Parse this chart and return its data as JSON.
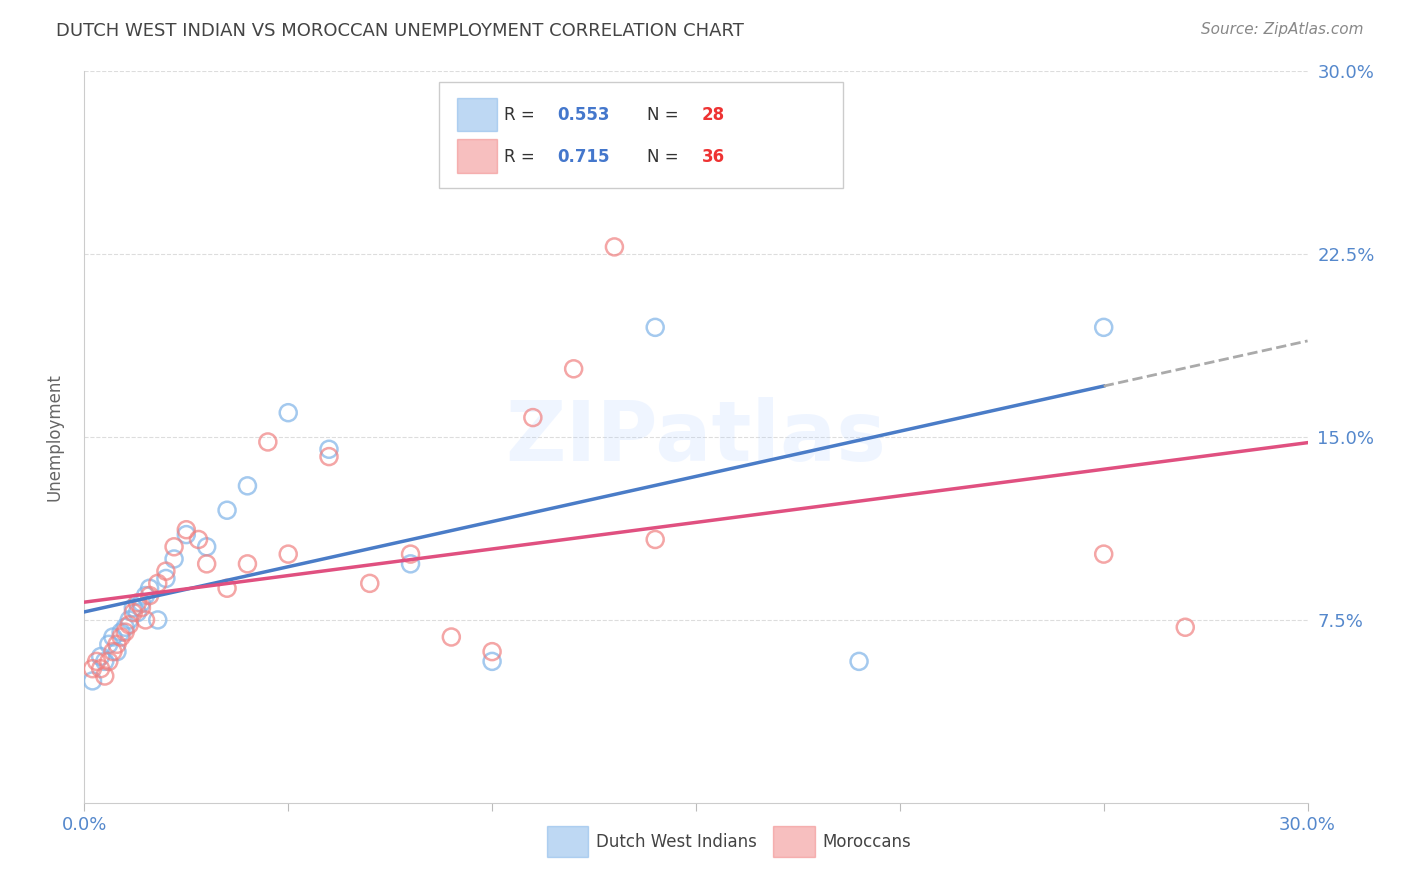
{
  "title": "DUTCH WEST INDIAN VS MOROCCAN UNEMPLOYMENT CORRELATION CHART",
  "source": "Source: ZipAtlas.com",
  "ylabel": "Unemployment",
  "xlim": [
    0.0,
    0.3
  ],
  "ylim": [
    0.0,
    0.3
  ],
  "xticks": [
    0.0,
    0.05,
    0.1,
    0.15,
    0.2,
    0.25,
    0.3
  ],
  "ytick_labels": [
    "7.5%",
    "15.0%",
    "22.5%",
    "30.0%"
  ],
  "ytick_positions": [
    0.075,
    0.15,
    0.225,
    0.3
  ],
  "watermark": "ZIPatlas",
  "blue_color": "#7EB3E8",
  "pink_color": "#F08080",
  "blue_scatter_face": "none",
  "pink_scatter_face": "none",
  "blue_line_color": "#4A7CC7",
  "pink_line_color": "#E05080",
  "dashed_line_color": "#AAAAAA",
  "title_color": "#444444",
  "axis_label_color": "#666666",
  "tick_color": "#5588CC",
  "grid_color": "#DDDDDD",
  "background_color": "#FFFFFF",
  "dutch_west_indians_x": [
    0.002,
    0.004,
    0.005,
    0.006,
    0.007,
    0.008,
    0.009,
    0.01,
    0.011,
    0.012,
    0.013,
    0.014,
    0.015,
    0.016,
    0.018,
    0.02,
    0.022,
    0.025,
    0.03,
    0.035,
    0.04,
    0.05,
    0.06,
    0.08,
    0.1,
    0.14,
    0.19,
    0.25
  ],
  "dutch_west_indians_y": [
    0.05,
    0.06,
    0.058,
    0.065,
    0.068,
    0.062,
    0.07,
    0.072,
    0.075,
    0.08,
    0.078,
    0.082,
    0.085,
    0.088,
    0.075,
    0.092,
    0.1,
    0.11,
    0.105,
    0.12,
    0.13,
    0.16,
    0.145,
    0.098,
    0.058,
    0.195,
    0.058,
    0.195
  ],
  "moroccans_x": [
    0.002,
    0.003,
    0.004,
    0.005,
    0.006,
    0.007,
    0.008,
    0.009,
    0.01,
    0.011,
    0.012,
    0.013,
    0.014,
    0.015,
    0.016,
    0.018,
    0.02,
    0.022,
    0.025,
    0.028,
    0.03,
    0.035,
    0.04,
    0.045,
    0.05,
    0.06,
    0.07,
    0.08,
    0.09,
    0.1,
    0.11,
    0.12,
    0.13,
    0.14,
    0.25,
    0.27
  ],
  "moroccans_y": [
    0.055,
    0.058,
    0.055,
    0.052,
    0.058,
    0.062,
    0.065,
    0.068,
    0.07,
    0.073,
    0.078,
    0.082,
    0.08,
    0.075,
    0.085,
    0.09,
    0.095,
    0.105,
    0.112,
    0.108,
    0.098,
    0.088,
    0.098,
    0.148,
    0.102,
    0.142,
    0.09,
    0.102,
    0.068,
    0.062,
    0.158,
    0.178,
    0.228,
    0.108,
    0.102,
    0.072
  ],
  "legend_r1_text": "R = ",
  "legend_r1_val": "0.553",
  "legend_n1_text": "N = ",
  "legend_n1_val": "28",
  "legend_r2_text": "R = ",
  "legend_r2_val": "0.715",
  "legend_n2_text": "N = ",
  "legend_n2_val": "36",
  "legend_color_val": "#4477CC",
  "legend_n_color": "#EE3333",
  "dwi_label": "Dutch West Indians",
  "mor_label": "Moroccans"
}
